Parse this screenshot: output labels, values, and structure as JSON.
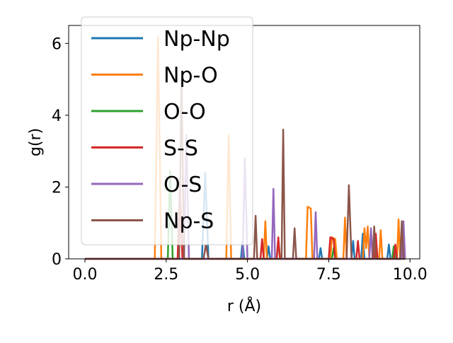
{
  "chart_data": {
    "type": "line",
    "title": "",
    "xlabel": "r (Å)",
    "ylabel": "g(r)",
    "xlim": [
      -0.5,
      10.3
    ],
    "ylim": [
      0,
      6.5
    ],
    "xticks": [
      0.0,
      2.5,
      5.0,
      7.5,
      10.0
    ],
    "xtick_labels": [
      "0.0",
      "2.5",
      "5.0",
      "7.5",
      "10.0"
    ],
    "yticks": [
      0,
      2,
      4,
      6
    ],
    "ytick_labels": [
      "0",
      "2",
      "4",
      "6"
    ],
    "grid": false,
    "legend_position": "top-left",
    "series": [
      {
        "name": "Np-Np",
        "color": "#1f77b4",
        "points": [
          [
            0.0,
            0
          ],
          [
            3.6,
            0
          ],
          [
            3.7,
            2.4
          ],
          [
            3.8,
            0
          ],
          [
            4.8,
            0
          ],
          [
            4.85,
            0.5
          ],
          [
            4.9,
            0
          ],
          [
            5.6,
            0
          ],
          [
            5.65,
            0.35
          ],
          [
            5.7,
            0
          ],
          [
            7.2,
            0
          ],
          [
            7.25,
            0.3
          ],
          [
            7.3,
            0
          ],
          [
            8.2,
            0
          ],
          [
            8.25,
            0.5
          ],
          [
            8.3,
            0
          ],
          [
            8.5,
            0
          ],
          [
            8.55,
            0.7
          ],
          [
            8.6,
            0
          ],
          [
            9.3,
            0
          ],
          [
            9.35,
            0.4
          ],
          [
            9.4,
            0
          ],
          [
            9.85,
            0
          ]
        ]
      },
      {
        "name": "Np-O",
        "color": "#ff7f0e",
        "points": [
          [
            0.0,
            0
          ],
          [
            2.15,
            0
          ],
          [
            2.25,
            6.2
          ],
          [
            2.35,
            0
          ],
          [
            4.35,
            0
          ],
          [
            4.42,
            3.45
          ],
          [
            4.5,
            0
          ],
          [
            5.5,
            0
          ],
          [
            5.55,
            1.05
          ],
          [
            5.6,
            0
          ],
          [
            6.8,
            0
          ],
          [
            6.85,
            1.45
          ],
          [
            6.95,
            1.4
          ],
          [
            7.0,
            0
          ],
          [
            7.55,
            0
          ],
          [
            7.6,
            0.6
          ],
          [
            7.7,
            0.55
          ],
          [
            7.75,
            0
          ],
          [
            7.95,
            0
          ],
          [
            8.0,
            1.15
          ],
          [
            8.05,
            0
          ],
          [
            8.55,
            0
          ],
          [
            8.6,
            0.85
          ],
          [
            8.65,
            0.3
          ],
          [
            8.7,
            0.9
          ],
          [
            8.75,
            0
          ],
          [
            9.05,
            0
          ],
          [
            9.1,
            0.8
          ],
          [
            9.15,
            0
          ],
          [
            9.6,
            0
          ],
          [
            9.65,
            1.1
          ],
          [
            9.7,
            0
          ],
          [
            9.85,
            0
          ]
        ]
      },
      {
        "name": "O-O",
        "color": "#2ca02c",
        "points": [
          [
            0.0,
            0
          ],
          [
            2.55,
            0
          ],
          [
            2.62,
            2.45
          ],
          [
            2.7,
            0
          ],
          [
            5.9,
            0
          ],
          [
            5.95,
            0.5
          ],
          [
            6.0,
            0
          ],
          [
            7.6,
            0
          ],
          [
            7.65,
            0.3
          ],
          [
            7.7,
            0
          ],
          [
            9.45,
            0
          ],
          [
            9.5,
            0.35
          ],
          [
            9.55,
            0
          ],
          [
            9.85,
            0
          ]
        ]
      },
      {
        "name": "S-S",
        "color": "#d62728",
        "points": [
          [
            0.0,
            0
          ],
          [
            2.85,
            0
          ],
          [
            2.92,
            2.0
          ],
          [
            3.0,
            0
          ],
          [
            5.4,
            0
          ],
          [
            5.45,
            0.55
          ],
          [
            5.5,
            0
          ],
          [
            5.9,
            0
          ],
          [
            5.95,
            0.6
          ],
          [
            6.0,
            0
          ],
          [
            7.5,
            0
          ],
          [
            7.55,
            0.6
          ],
          [
            7.65,
            0.55
          ],
          [
            7.7,
            0
          ],
          [
            8.35,
            0
          ],
          [
            8.4,
            0.5
          ],
          [
            8.45,
            0
          ],
          [
            8.9,
            0
          ],
          [
            8.95,
            0.7
          ],
          [
            9.0,
            0
          ],
          [
            9.5,
            0
          ],
          [
            9.55,
            0.4
          ],
          [
            9.6,
            0
          ],
          [
            9.75,
            0
          ],
          [
            9.8,
            0.3
          ],
          [
            9.85,
            0
          ]
        ]
      },
      {
        "name": "O-S",
        "color": "#9467bd",
        "points": [
          [
            0.0,
            0
          ],
          [
            3.05,
            0
          ],
          [
            3.12,
            3.45
          ],
          [
            3.2,
            0
          ],
          [
            4.85,
            0
          ],
          [
            4.92,
            2.8
          ],
          [
            5.0,
            0
          ],
          [
            5.75,
            0
          ],
          [
            5.8,
            1.95
          ],
          [
            5.85,
            0
          ],
          [
            7.05,
            0
          ],
          [
            7.1,
            1.3
          ],
          [
            7.15,
            0
          ],
          [
            8.75,
            0
          ],
          [
            8.8,
            0.85
          ],
          [
            8.85,
            0
          ],
          [
            9.75,
            0
          ],
          [
            9.8,
            1.05
          ],
          [
            9.85,
            0
          ]
        ]
      },
      {
        "name": "Np-S",
        "color": "#8c564b",
        "points": [
          [
            0.0,
            0
          ],
          [
            2.9,
            0
          ],
          [
            2.97,
            5.0
          ],
          [
            3.05,
            0
          ],
          [
            3.65,
            0
          ],
          [
            3.72,
            0.4
          ],
          [
            3.8,
            0
          ],
          [
            5.2,
            0
          ],
          [
            5.25,
            1.2
          ],
          [
            5.3,
            0
          ],
          [
            6.05,
            0
          ],
          [
            6.1,
            3.6
          ],
          [
            6.15,
            0
          ],
          [
            6.4,
            0
          ],
          [
            6.45,
            0.85
          ],
          [
            6.5,
            0
          ],
          [
            8.05,
            0
          ],
          [
            8.12,
            2.05
          ],
          [
            8.2,
            0
          ],
          [
            8.85,
            0
          ],
          [
            8.9,
            0.9
          ],
          [
            8.95,
            0
          ],
          [
            9.7,
            0
          ],
          [
            9.75,
            1.05
          ],
          [
            9.8,
            0
          ],
          [
            9.85,
            0
          ]
        ]
      }
    ]
  }
}
